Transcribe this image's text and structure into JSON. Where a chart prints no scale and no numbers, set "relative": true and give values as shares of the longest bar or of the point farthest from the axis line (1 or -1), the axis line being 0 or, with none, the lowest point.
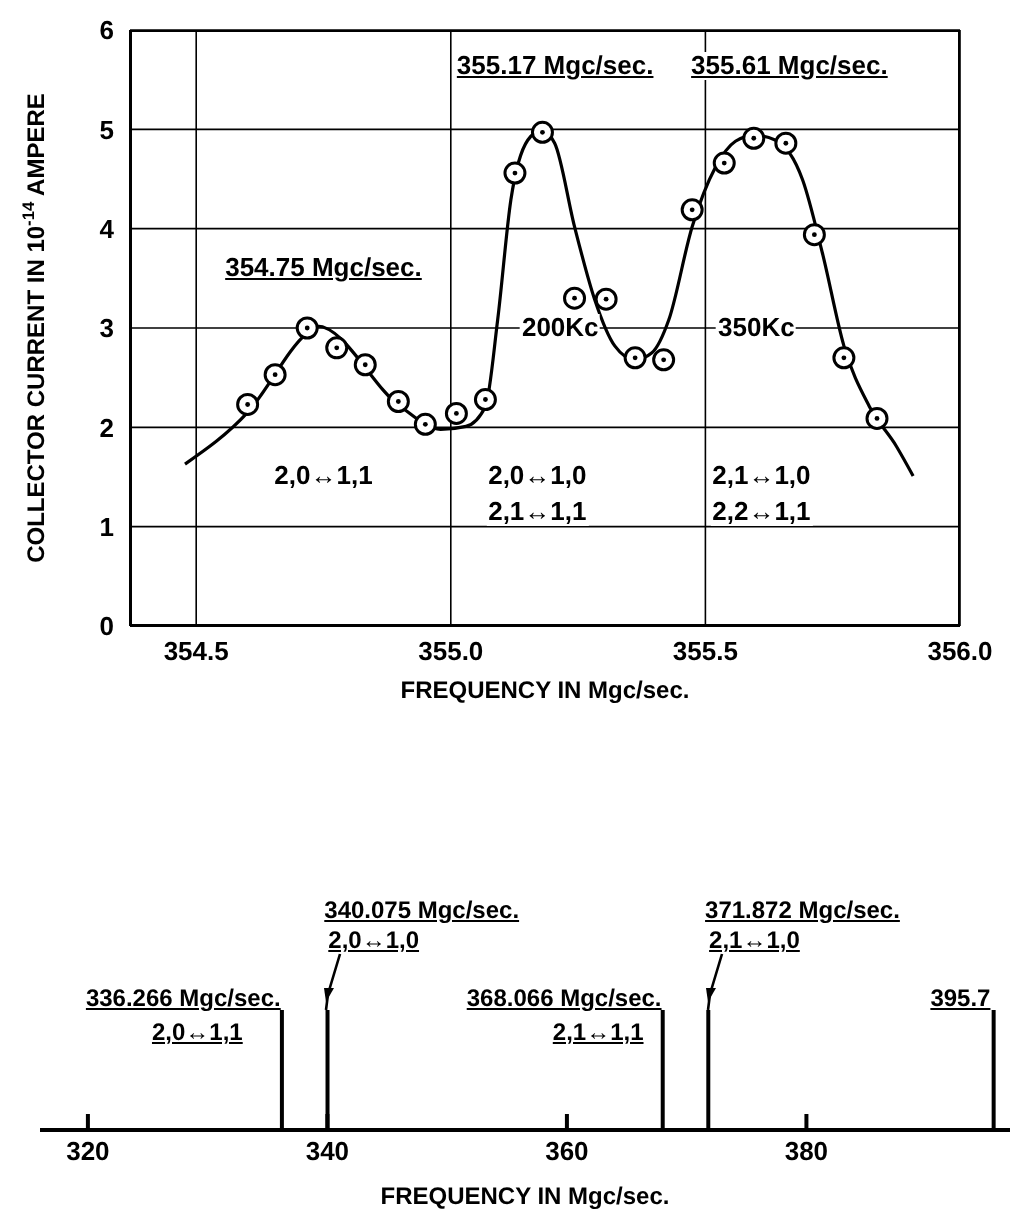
{
  "chart_data": [
    {
      "type": "scatter",
      "xlabel": "FREQUENCY IN Mgc/sec.",
      "ylabel": "COLLECTOR CURRENT IN 10$^{-14}$ AMPERE",
      "xlim": [
        354.37,
        356.0
      ],
      "xticks": [
        354.5,
        {
          "value": 355,
          "label": "355.0"
        },
        355.5,
        {
          "value": 356,
          "label": "356.0"
        }
      ],
      "ylim": [
        0,
        6
      ],
      "yticks": [
        0,
        1,
        2,
        3,
        4,
        5,
        6
      ],
      "grid": true,
      "series": [
        {
          "type": "scatter",
          "color": "#000000",
          "marker": "circle",
          "x": [
            354.601,
            354.655,
            354.718,
            354.776,
            354.832,
            354.897,
            354.95,
            355.011,
            355.068,
            355.126,
            355.18,
            355.243,
            355.305,
            355.362,
            355.418,
            355.474,
            355.537,
            355.595,
            355.658,
            355.714,
            355.772,
            355.837
          ],
          "values": [
            2.23,
            2.53,
            3.0,
            2.8,
            2.63,
            2.26,
            2.03,
            2.14,
            2.28,
            4.56,
            4.97,
            3.3,
            3.29,
            2.7,
            2.68,
            4.19,
            4.66,
            4.91,
            4.86,
            3.94,
            2.7,
            2.09
          ]
        },
        {
          "type": "line",
          "color": "#000000",
          "marker": "none",
          "x": [
            354.478,
            354.601,
            354.718,
            354.737,
            354.901,
            354.98,
            355.03,
            355.068,
            355.092,
            355.118,
            355.151,
            355.178,
            355.204,
            355.243,
            355.283,
            355.322,
            355.362,
            355.395,
            355.428,
            355.474,
            355.52,
            355.559,
            355.595,
            355.638,
            355.691,
            355.73,
            355.772,
            355.822,
            355.875,
            355.908
          ],
          "values": [
            1.63,
            2.15,
            2.95,
            3.02,
            2.21,
            1.98,
            2.01,
            2.21,
            3.08,
            4.29,
            4.89,
            4.99,
            4.86,
            4.02,
            3.28,
            2.82,
            2.68,
            2.75,
            3.08,
            4.02,
            4.62,
            4.88,
            4.94,
            4.89,
            4.49,
            3.75,
            2.82,
            2.21,
            1.81,
            1.51
          ]
        }
      ],
      "annotations": [
        {
          "text": "354.75 Mgc/sec.",
          "x": 354.75,
          "y": 3.0
        },
        {
          "text": "355.17 Mgc/sec.",
          "x": 355.17,
          "y": 5.0
        },
        {
          "text": "355.61 Mgc/sec.",
          "x": 355.61,
          "y": 4.95
        },
        "200Kc",
        "350Kc",
        "2,0↔1,1",
        "2,0↔1,0",
        "2,1↔1,1",
        "2,1↔1,0",
        "2,2↔1,1"
      ]
    },
    {
      "type": "bar",
      "relative": true,
      "color": "#000000",
      "xlabel": "FREQUENCY IN Mgc/sec.",
      "x": [
        336.266,
        340.075,
        368.066,
        371.872,
        395.7
      ],
      "values": [
        1,
        1,
        1,
        1,
        1
      ],
      "xlim": [
        316,
        397
      ],
      "xticks": [
        320,
        340,
        360,
        380
      ],
      "annotations": [
        {
          "text": "336.266 Mgc/sec.",
          "x": 336.266,
          "y": 1
        },
        {
          "text": "2,0↔1,1",
          "x": 336.266,
          "y": 1
        },
        {
          "text": "340.075 Mgc/sec.",
          "x": 340.075,
          "y": 1
        },
        {
          "text": "2,0↔1,0",
          "x": 340.075,
          "y": 1
        },
        {
          "text": "368.066 Mgc/sec.",
          "x": 368.066,
          "y": 1
        },
        {
          "text": "2,1↔1,1",
          "x": 368.066,
          "y": 1
        },
        {
          "text": "371.872 Mgc/sec.",
          "x": 371.872,
          "y": 1
        },
        {
          "text": "2,1↔1,0",
          "x": 371.872,
          "y": 1
        },
        {
          "text": "395.7",
          "x": 395.7,
          "y": 1
        }
      ]
    }
  ]
}
